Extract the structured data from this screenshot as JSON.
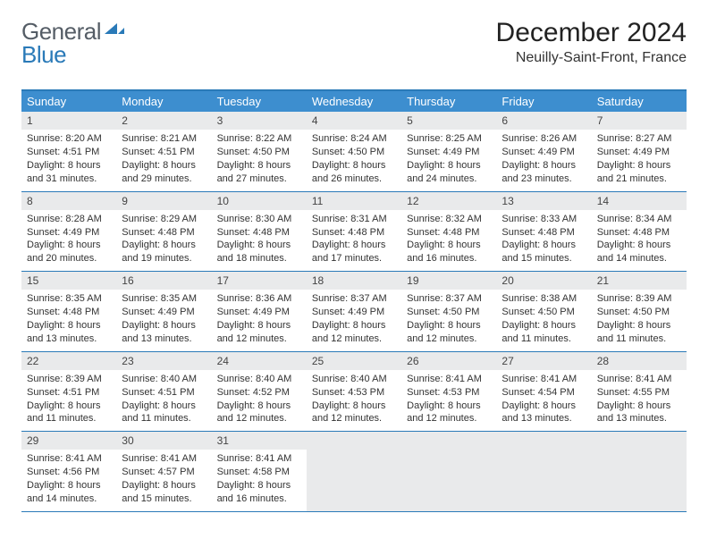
{
  "brand": {
    "text_general": "General",
    "text_blue": "Blue",
    "mark_color": "#2a7ab8"
  },
  "title": "December 2024",
  "subtitle": "Neuilly-Saint-Front, France",
  "colors": {
    "header_bar": "#3d8ecf",
    "row_divider": "#2a7ab8",
    "day_number_bg": "#e9eaeb",
    "text": "#333333"
  },
  "days_of_week": [
    "Sunday",
    "Monday",
    "Tuesday",
    "Wednesday",
    "Thursday",
    "Friday",
    "Saturday"
  ],
  "weeks": [
    [
      {
        "n": "1",
        "sunrise": "Sunrise: 8:20 AM",
        "sunset": "Sunset: 4:51 PM",
        "d1": "Daylight: 8 hours",
        "d2": "and 31 minutes."
      },
      {
        "n": "2",
        "sunrise": "Sunrise: 8:21 AM",
        "sunset": "Sunset: 4:51 PM",
        "d1": "Daylight: 8 hours",
        "d2": "and 29 minutes."
      },
      {
        "n": "3",
        "sunrise": "Sunrise: 8:22 AM",
        "sunset": "Sunset: 4:50 PM",
        "d1": "Daylight: 8 hours",
        "d2": "and 27 minutes."
      },
      {
        "n": "4",
        "sunrise": "Sunrise: 8:24 AM",
        "sunset": "Sunset: 4:50 PM",
        "d1": "Daylight: 8 hours",
        "d2": "and 26 minutes."
      },
      {
        "n": "5",
        "sunrise": "Sunrise: 8:25 AM",
        "sunset": "Sunset: 4:49 PM",
        "d1": "Daylight: 8 hours",
        "d2": "and 24 minutes."
      },
      {
        "n": "6",
        "sunrise": "Sunrise: 8:26 AM",
        "sunset": "Sunset: 4:49 PM",
        "d1": "Daylight: 8 hours",
        "d2": "and 23 minutes."
      },
      {
        "n": "7",
        "sunrise": "Sunrise: 8:27 AM",
        "sunset": "Sunset: 4:49 PM",
        "d1": "Daylight: 8 hours",
        "d2": "and 21 minutes."
      }
    ],
    [
      {
        "n": "8",
        "sunrise": "Sunrise: 8:28 AM",
        "sunset": "Sunset: 4:49 PM",
        "d1": "Daylight: 8 hours",
        "d2": "and 20 minutes."
      },
      {
        "n": "9",
        "sunrise": "Sunrise: 8:29 AM",
        "sunset": "Sunset: 4:48 PM",
        "d1": "Daylight: 8 hours",
        "d2": "and 19 minutes."
      },
      {
        "n": "10",
        "sunrise": "Sunrise: 8:30 AM",
        "sunset": "Sunset: 4:48 PM",
        "d1": "Daylight: 8 hours",
        "d2": "and 18 minutes."
      },
      {
        "n": "11",
        "sunrise": "Sunrise: 8:31 AM",
        "sunset": "Sunset: 4:48 PM",
        "d1": "Daylight: 8 hours",
        "d2": "and 17 minutes."
      },
      {
        "n": "12",
        "sunrise": "Sunrise: 8:32 AM",
        "sunset": "Sunset: 4:48 PM",
        "d1": "Daylight: 8 hours",
        "d2": "and 16 minutes."
      },
      {
        "n": "13",
        "sunrise": "Sunrise: 8:33 AM",
        "sunset": "Sunset: 4:48 PM",
        "d1": "Daylight: 8 hours",
        "d2": "and 15 minutes."
      },
      {
        "n": "14",
        "sunrise": "Sunrise: 8:34 AM",
        "sunset": "Sunset: 4:48 PM",
        "d1": "Daylight: 8 hours",
        "d2": "and 14 minutes."
      }
    ],
    [
      {
        "n": "15",
        "sunrise": "Sunrise: 8:35 AM",
        "sunset": "Sunset: 4:48 PM",
        "d1": "Daylight: 8 hours",
        "d2": "and 13 minutes."
      },
      {
        "n": "16",
        "sunrise": "Sunrise: 8:35 AM",
        "sunset": "Sunset: 4:49 PM",
        "d1": "Daylight: 8 hours",
        "d2": "and 13 minutes."
      },
      {
        "n": "17",
        "sunrise": "Sunrise: 8:36 AM",
        "sunset": "Sunset: 4:49 PM",
        "d1": "Daylight: 8 hours",
        "d2": "and 12 minutes."
      },
      {
        "n": "18",
        "sunrise": "Sunrise: 8:37 AM",
        "sunset": "Sunset: 4:49 PM",
        "d1": "Daylight: 8 hours",
        "d2": "and 12 minutes."
      },
      {
        "n": "19",
        "sunrise": "Sunrise: 8:37 AM",
        "sunset": "Sunset: 4:50 PM",
        "d1": "Daylight: 8 hours",
        "d2": "and 12 minutes."
      },
      {
        "n": "20",
        "sunrise": "Sunrise: 8:38 AM",
        "sunset": "Sunset: 4:50 PM",
        "d1": "Daylight: 8 hours",
        "d2": "and 11 minutes."
      },
      {
        "n": "21",
        "sunrise": "Sunrise: 8:39 AM",
        "sunset": "Sunset: 4:50 PM",
        "d1": "Daylight: 8 hours",
        "d2": "and 11 minutes."
      }
    ],
    [
      {
        "n": "22",
        "sunrise": "Sunrise: 8:39 AM",
        "sunset": "Sunset: 4:51 PM",
        "d1": "Daylight: 8 hours",
        "d2": "and 11 minutes."
      },
      {
        "n": "23",
        "sunrise": "Sunrise: 8:40 AM",
        "sunset": "Sunset: 4:51 PM",
        "d1": "Daylight: 8 hours",
        "d2": "and 11 minutes."
      },
      {
        "n": "24",
        "sunrise": "Sunrise: 8:40 AM",
        "sunset": "Sunset: 4:52 PM",
        "d1": "Daylight: 8 hours",
        "d2": "and 12 minutes."
      },
      {
        "n": "25",
        "sunrise": "Sunrise: 8:40 AM",
        "sunset": "Sunset: 4:53 PM",
        "d1": "Daylight: 8 hours",
        "d2": "and 12 minutes."
      },
      {
        "n": "26",
        "sunrise": "Sunrise: 8:41 AM",
        "sunset": "Sunset: 4:53 PM",
        "d1": "Daylight: 8 hours",
        "d2": "and 12 minutes."
      },
      {
        "n": "27",
        "sunrise": "Sunrise: 8:41 AM",
        "sunset": "Sunset: 4:54 PM",
        "d1": "Daylight: 8 hours",
        "d2": "and 13 minutes."
      },
      {
        "n": "28",
        "sunrise": "Sunrise: 8:41 AM",
        "sunset": "Sunset: 4:55 PM",
        "d1": "Daylight: 8 hours",
        "d2": "and 13 minutes."
      }
    ],
    [
      {
        "n": "29",
        "sunrise": "Sunrise: 8:41 AM",
        "sunset": "Sunset: 4:56 PM",
        "d1": "Daylight: 8 hours",
        "d2": "and 14 minutes."
      },
      {
        "n": "30",
        "sunrise": "Sunrise: 8:41 AM",
        "sunset": "Sunset: 4:57 PM",
        "d1": "Daylight: 8 hours",
        "d2": "and 15 minutes."
      },
      {
        "n": "31",
        "sunrise": "Sunrise: 8:41 AM",
        "sunset": "Sunset: 4:58 PM",
        "d1": "Daylight: 8 hours",
        "d2": "and 16 minutes."
      },
      null,
      null,
      null,
      null
    ]
  ]
}
